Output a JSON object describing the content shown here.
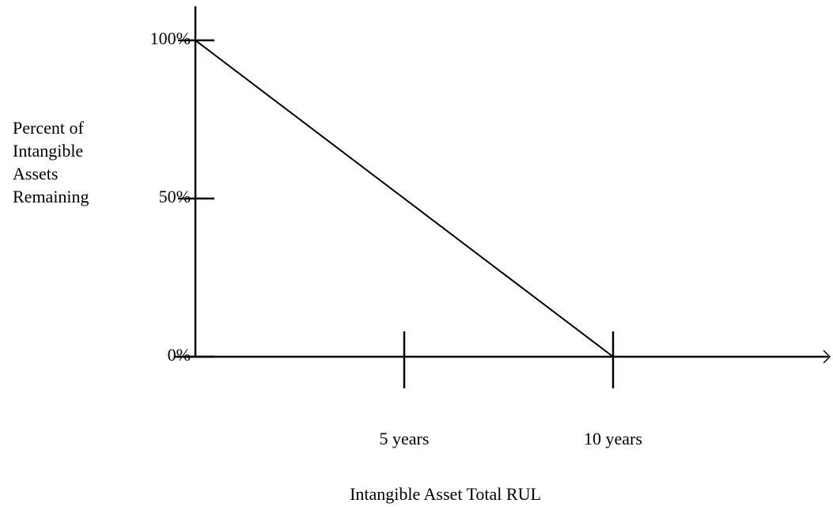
{
  "chart_data": {
    "type": "line",
    "x_label": "Intangible Asset Total RUL",
    "y_label": "Percent of\nIntangible\nAssets\nRemaining",
    "x": [
      0,
      10
    ],
    "series": [
      {
        "color": "#000000",
        "values": [
          100,
          0
        ]
      }
    ],
    "xlim": [
      0,
      15
    ],
    "ylim": [
      0,
      110
    ],
    "xticks": [
      {
        "value": 5,
        "label": "5 years"
      },
      {
        "value": 10,
        "label": "10 years"
      }
    ],
    "yticks": [
      {
        "value": 0,
        "label": "0%"
      },
      {
        "value": 50,
        "label": "50%"
      },
      {
        "value": 100,
        "label": "100%"
      }
    ]
  }
}
